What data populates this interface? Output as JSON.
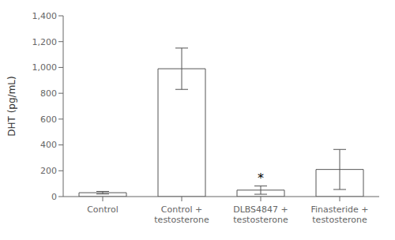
{
  "chart_data": {
    "type": "bar",
    "categories": [
      "Control",
      "Control +\ntestosterone",
      "DLBS4847 +\ntestosterone",
      "Finasteride +\ntestosterone"
    ],
    "values": [
      30,
      990,
      50,
      210
    ],
    "errors": [
      10,
      160,
      32,
      155
    ],
    "color": "#555555",
    "ylabel": "DHT (pg/mL)",
    "ylim": [
      0,
      1400
    ],
    "yticks": [
      0,
      200,
      400,
      600,
      800,
      {
        "value": 1000,
        "label": "1,000"
      },
      {
        "value": 1200,
        "label": "1,200"
      },
      {
        "value": 1400,
        "label": "1,400"
      }
    ],
    "annotations": [
      {
        "text": "*",
        "category": "DLBS4847 +\ntestosterone"
      }
    ],
    "grid": false
  }
}
